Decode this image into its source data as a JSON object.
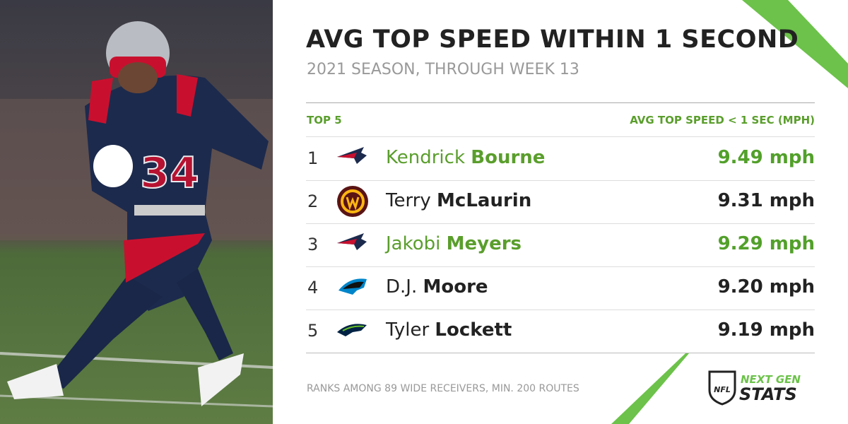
{
  "header": {
    "title": "AVG TOP SPEED WITHIN 1 SECOND",
    "subtitle": "2021 SEASON, THROUGH WEEK 13"
  },
  "table": {
    "columns": [
      "TOP 5",
      "AVG TOP SPEED < 1 SEC (MPH)"
    ],
    "rows": [
      {
        "rank": 1,
        "first": "Kendrick",
        "last": "Bourne",
        "speed": "9.49 mph",
        "color": "#5a9e2c"
      },
      {
        "rank": 2,
        "first": "Terry",
        "last": "McLaurin",
        "speed": "9.31 mph",
        "color": "#222222"
      },
      {
        "rank": 3,
        "first": "Jakobi",
        "last": "Meyers",
        "speed": "9.29 mph",
        "color": "#5a9e2c"
      },
      {
        "rank": 4,
        "first": "D.J.",
        "last": "Moore",
        "speed": "9.20 mph",
        "color": "#222222"
      },
      {
        "rank": 5,
        "first": "Tyler",
        "last": "Lockett",
        "speed": "9.19 mph",
        "color": "#222222"
      }
    ]
  },
  "footnote": "RANKS AMONG 89 WIDE RECEIVERS, MIN. 200 ROUTES",
  "logo": {
    "shield": "NFL",
    "line1": "NEXT GEN",
    "line2": "STATS"
  }
}
